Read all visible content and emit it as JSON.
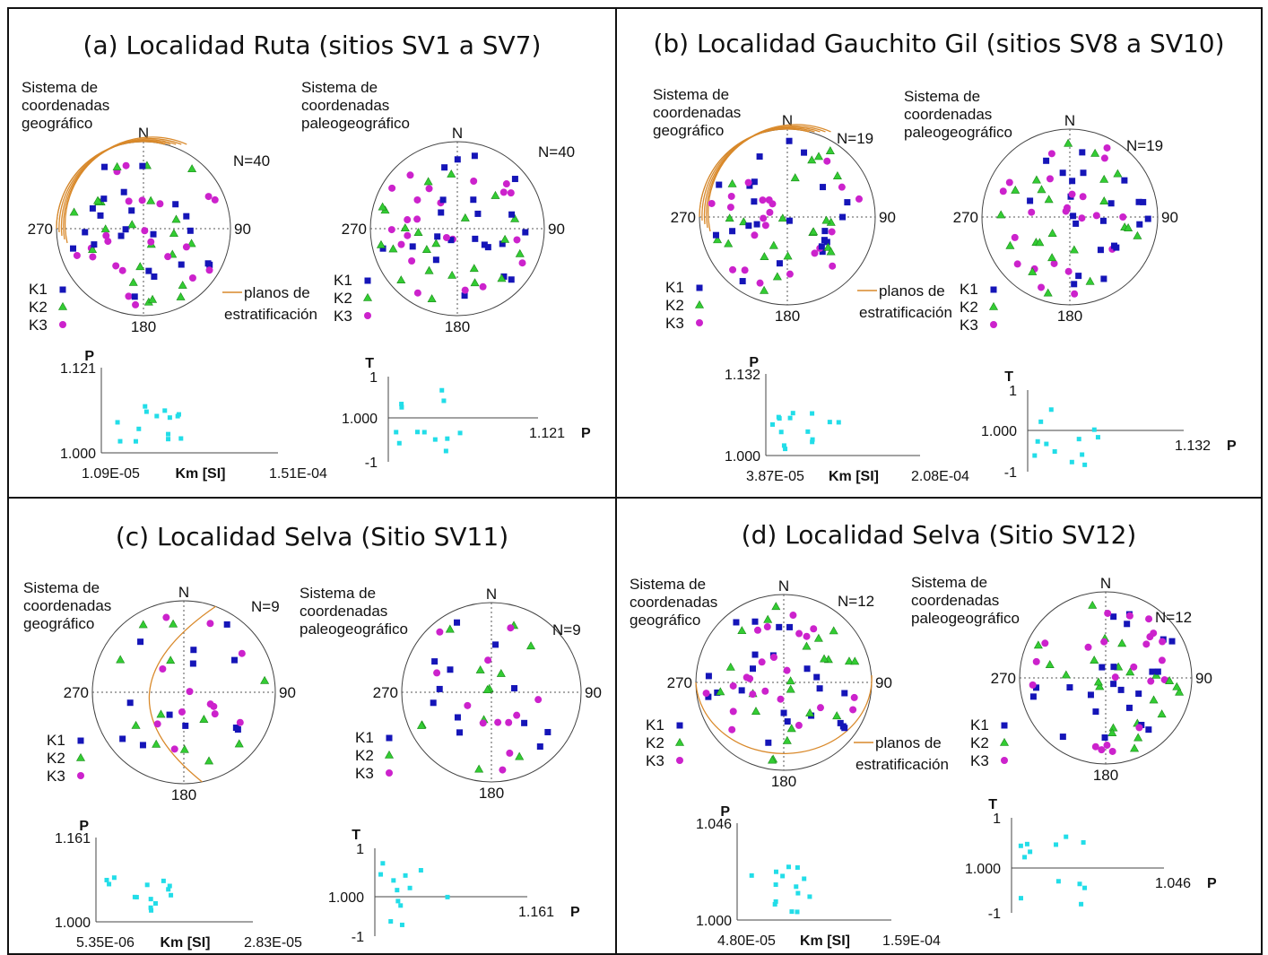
{
  "legend": {
    "k1": "K1",
    "k2": "K2",
    "k3": "K3",
    "planes": "planos de\nestratificación"
  },
  "compass": {
    "n": "N",
    "e": "90",
    "s": "180",
    "w": "270"
  },
  "colors": {
    "k1": "#1515b8",
    "k2": "#33cc33",
    "k3": "#cc22cc",
    "planes": "#d9892a",
    "scatter": "#22dde8"
  },
  "coord_geo": "Sistema de\ncoordenadas\ngeográfico",
  "coord_paleo": "Sistema de\ncoordenadas\npaleogeográfico",
  "panels": {
    "a": {
      "title": "(a) Localidad Ruta (sitios SV1 a SV7)",
      "n_geo": "N=40",
      "n_paleo": "N=40",
      "pkm": {
        "ylabel": "P",
        "ymax": "1.121",
        "ymin": "1.000",
        "xmin": "1.09E-05",
        "xlabel": "Km [SI]",
        "xmax": "1.51E-04"
      },
      "tp": {
        "ylabel": "T",
        "ytop": "1",
        "ymid": "1.000",
        "ybot": "-1",
        "xmax": "1.121",
        "xlabel": "P"
      }
    },
    "b": {
      "title": "(b) Localidad Gauchito Gil (sitios SV8 a SV10)",
      "n_geo": "N=19",
      "n_paleo": "N=19",
      "pkm": {
        "ylabel": "P",
        "ymax": "1.132",
        "ymin": "1.000",
        "xmin": "3.87E-05",
        "xlabel": "Km [SI]",
        "xmax": "2.08E-04"
      },
      "tp": {
        "ylabel": "T",
        "ytop": "1",
        "ymid": "1.000",
        "ybot": "-1",
        "xmax": "1.132",
        "xlabel": "P"
      }
    },
    "c": {
      "title": "(c) Localidad Selva (Sitio SV11)",
      "n_geo": "N=9",
      "n_paleo": "N=9",
      "pkm": {
        "ylabel": "P",
        "ymax": "1.161",
        "ymin": "1.000",
        "xmin": "5.35E-06",
        "xlabel": "Km [SI]",
        "xmax": "2.83E-05"
      },
      "tp": {
        "ylabel": "T",
        "ytop": "1",
        "ymid": "1.000",
        "ybot": "-1",
        "xmax": "1.161",
        "xlabel": "P"
      }
    },
    "d": {
      "title": "(d) Localidad Selva (Sitio SV12)",
      "n_geo": "N=12",
      "n_paleo": "N=12",
      "pkm": {
        "ylabel": "P",
        "ymax": "1.046",
        "ymin": "1.000",
        "xmin": "4.80E-05",
        "xlabel": "Km [SI]",
        "xmax": "1.59E-04"
      },
      "tp": {
        "ylabel": "T",
        "ytop": "1",
        "ymid": "1.000",
        "ybot": "-1",
        "xmax": "1.046",
        "xlabel": "P"
      }
    }
  }
}
